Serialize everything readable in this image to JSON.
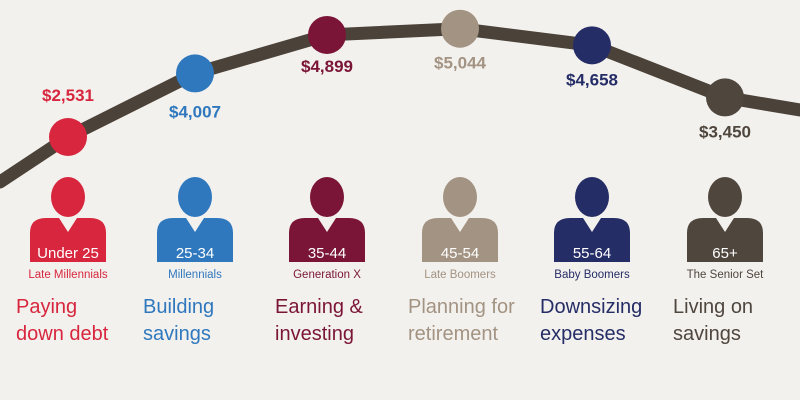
{
  "chart_data": {
    "type": "line",
    "categories": [
      "Under 25",
      "25-34",
      "35-44",
      "45-54",
      "55-64",
      "65+"
    ],
    "values": [
      2531,
      4007,
      4899,
      5044,
      4658,
      3450
    ],
    "value_labels": [
      "$2,531",
      "$4,007",
      "$4,899",
      "$5,044",
      "$4,658",
      "$3,450"
    ],
    "generations": [
      "Late Millennials",
      "Millennials",
      "Generation X",
      "Late Boomers",
      "Baby Boomers",
      "The Senior Set"
    ],
    "descriptions": [
      [
        "Paying",
        "down debt"
      ],
      [
        "Building",
        "savings"
      ],
      [
        "Earning &",
        "investing"
      ],
      [
        "Planning for",
        "retirement"
      ],
      [
        "Downsizing",
        "expenses"
      ],
      [
        "Living on",
        "savings"
      ]
    ],
    "colors": [
      "#d7263d",
      "#2f78be",
      "#7b1537",
      "#a39382",
      "#252d66",
      "#4f463e"
    ],
    "line_color": "#4b4239",
    "title": "",
    "xlabel": "",
    "ylabel": "",
    "grid": false
  }
}
